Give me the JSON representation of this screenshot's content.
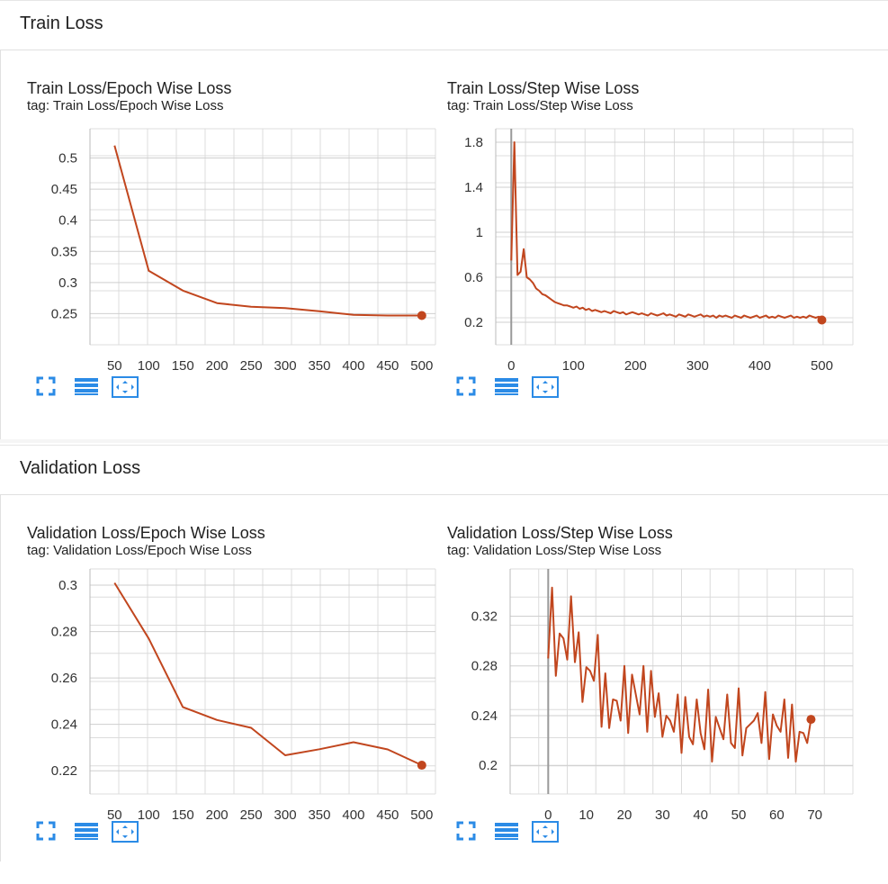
{
  "sections": [
    {
      "title": "Train Loss"
    },
    {
      "title": "Validation Loss"
    }
  ],
  "colors": {
    "line": "#c1461e",
    "grid": "#dcdcdc",
    "icon": "#2b8be6"
  },
  "icons": [
    "fullscreen-icon",
    "data-table-icon",
    "fit-domain-icon"
  ],
  "chart_data": [
    {
      "type": "line",
      "title": "Train Loss/Epoch Wise Loss",
      "tag": "tag: Train Loss/Epoch Wise Loss",
      "x": [
        50,
        100,
        150,
        200,
        250,
        300,
        350,
        400,
        450,
        500
      ],
      "series": [
        {
          "values": [
            0.52,
            0.319,
            0.287,
            0.267,
            0.261,
            0.259,
            0.254,
            0.248,
            0.247,
            0.247
          ]
        }
      ],
      "xticks": [
        50,
        100,
        150,
        200,
        250,
        300,
        350,
        400,
        450,
        500
      ],
      "xtick_labels": [
        "50",
        "100",
        "150",
        "200",
        "250",
        "300",
        "350",
        "400",
        "450",
        "500"
      ],
      "yticks": [
        0.25,
        0.3,
        0.35,
        0.4,
        0.45,
        0.5
      ],
      "ytick_labels": [
        "0.25",
        "0.3",
        "0.35",
        "0.4",
        "0.45",
        "0.5"
      ],
      "xlim": [
        14,
        520
      ],
      "ylim": [
        0.2,
        0.547
      ],
      "grid": true,
      "xaxis_line": false
    },
    {
      "type": "line",
      "title": "Train Loss/Step Wise Loss",
      "tag": "tag: Train Loss/Step Wise Loss",
      "x_start": 0,
      "x_end": 500,
      "series": [
        {
          "values": [
            0.75,
            1.8,
            0.62,
            0.65,
            0.85,
            0.6,
            0.58,
            0.55,
            0.5,
            0.48,
            0.45,
            0.44,
            0.42,
            0.4,
            0.38,
            0.37,
            0.36,
            0.35,
            0.35,
            0.34,
            0.33,
            0.34,
            0.32,
            0.33,
            0.31,
            0.32,
            0.3,
            0.31,
            0.3,
            0.29,
            0.3,
            0.29,
            0.28,
            0.3,
            0.29,
            0.28,
            0.29,
            0.27,
            0.28,
            0.29,
            0.28,
            0.27,
            0.28,
            0.27,
            0.26,
            0.28,
            0.27,
            0.26,
            0.27,
            0.28,
            0.26,
            0.27,
            0.26,
            0.25,
            0.27,
            0.26,
            0.25,
            0.27,
            0.26,
            0.25,
            0.26,
            0.27,
            0.25,
            0.26,
            0.25,
            0.26,
            0.24,
            0.26,
            0.25,
            0.26,
            0.25,
            0.24,
            0.26,
            0.25,
            0.24,
            0.26,
            0.25,
            0.24,
            0.25,
            0.26,
            0.24,
            0.25,
            0.26,
            0.24,
            0.25,
            0.24,
            0.26,
            0.25,
            0.24,
            0.25,
            0.26,
            0.24,
            0.25,
            0.24,
            0.25,
            0.24,
            0.26,
            0.25,
            0.24,
            0.25,
            0.22
          ]
        }
      ],
      "xticks": [
        0,
        100,
        200,
        300,
        400,
        500
      ],
      "xtick_labels": [
        "0",
        "100",
        "200",
        "300",
        "400",
        "500"
      ],
      "yticks": [
        0.2,
        0.6,
        1,
        1.4,
        1.8
      ],
      "ytick_labels": [
        "0.2",
        "0.6",
        "1",
        "1.4",
        "1.8"
      ],
      "xlim": [
        -25,
        550
      ],
      "ylim": [
        0.0,
        1.92
      ],
      "grid": true,
      "xaxis_line": true
    },
    {
      "type": "line",
      "title": "Validation Loss/Epoch Wise Loss",
      "tag": "tag: Validation Loss/Epoch Wise Loss",
      "x": [
        50,
        100,
        150,
        200,
        250,
        300,
        350,
        400,
        450,
        500
      ],
      "series": [
        {
          "values": [
            0.301,
            0.277,
            0.2475,
            0.2419,
            0.2385,
            0.2267,
            0.2293,
            0.2323,
            0.2292,
            0.2224
          ]
        }
      ],
      "xticks": [
        50,
        100,
        150,
        200,
        250,
        300,
        350,
        400,
        450,
        500
      ],
      "xtick_labels": [
        "50",
        "100",
        "150",
        "200",
        "250",
        "300",
        "350",
        "400",
        "450",
        "500"
      ],
      "yticks": [
        0.22,
        0.24,
        0.26,
        0.28,
        0.3
      ],
      "ytick_labels": [
        "0.22",
        "0.24",
        "0.26",
        "0.28",
        "0.3"
      ],
      "xlim": [
        14,
        520
      ],
      "ylim": [
        0.21,
        0.307
      ],
      "grid": true,
      "xaxis_line": false
    },
    {
      "type": "line",
      "title": "Validation Loss/Step Wise Loss",
      "tag": "tag: Validation Loss/Step Wise Loss",
      "x_start": 0,
      "x_end": 69,
      "series": [
        {
          "values": [
            0.286,
            0.343,
            0.272,
            0.306,
            0.302,
            0.285,
            0.336,
            0.283,
            0.307,
            0.251,
            0.279,
            0.276,
            0.268,
            0.305,
            0.231,
            0.274,
            0.23,
            0.253,
            0.252,
            0.236,
            0.28,
            0.226,
            0.273,
            0.257,
            0.241,
            0.28,
            0.227,
            0.276,
            0.239,
            0.258,
            0.223,
            0.24,
            0.236,
            0.227,
            0.257,
            0.21,
            0.255,
            0.223,
            0.217,
            0.253,
            0.226,
            0.213,
            0.261,
            0.203,
            0.239,
            0.23,
            0.221,
            0.257,
            0.218,
            0.214,
            0.262,
            0.208,
            0.23,
            0.233,
            0.236,
            0.242,
            0.218,
            0.259,
            0.205,
            0.241,
            0.232,
            0.227,
            0.253,
            0.206,
            0.249,
            0.203,
            0.227,
            0.226,
            0.218,
            0.237
          ]
        }
      ],
      "xticks": [
        0,
        10,
        20,
        30,
        40,
        50,
        60,
        70
      ],
      "xtick_labels": [
        "0",
        "10",
        "20",
        "30",
        "40",
        "50",
        "60",
        "70"
      ],
      "yticks": [
        0.2,
        0.24,
        0.28,
        0.32
      ],
      "ytick_labels": [
        "0.2",
        "0.24",
        "0.28",
        "0.32"
      ],
      "xlim": [
        -10,
        80
      ],
      "ylim": [
        0.177,
        0.358
      ],
      "grid": true,
      "xaxis_line": true
    }
  ]
}
